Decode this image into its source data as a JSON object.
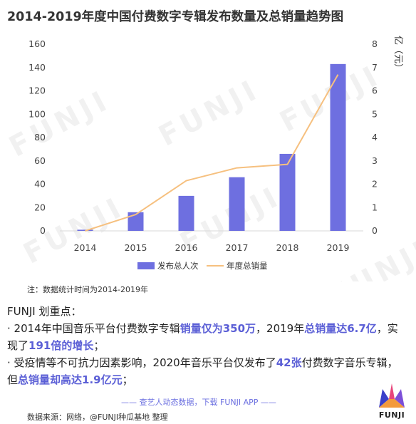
{
  "title": "2014-2019年度中国付费数字专辑发布数量及总销量趋势图",
  "watermark": "FUNJI",
  "chart_data": {
    "type": "bar",
    "categories": [
      "2014",
      "2015",
      "2016",
      "2017",
      "2018",
      "2019"
    ],
    "series": [
      {
        "name": "发布总人次",
        "kind": "bar",
        "axis": "left",
        "color": "#6e6fe0",
        "values": [
          1,
          16,
          30,
          46,
          66,
          143
        ]
      },
      {
        "name": "年度总销量",
        "kind": "line",
        "axis": "right",
        "color": "#f6c07f",
        "values": [
          0.0,
          0.7,
          2.15,
          2.7,
          2.85,
          6.7
        ]
      }
    ],
    "y_left": {
      "ylim": [
        0,
        160
      ],
      "ticks": [
        "0",
        "20",
        "40",
        "60",
        "80",
        "100",
        "120",
        "140",
        "160"
      ]
    },
    "y_right": {
      "ylim": [
        0,
        8
      ],
      "ticks": [
        "0",
        "1",
        "2",
        "3",
        "4",
        "5",
        "6",
        "7",
        "8"
      ],
      "label": "亿（元）"
    },
    "grid": false,
    "legend": "bottom"
  },
  "note": "注：数据统计时间为2014-2019年",
  "highlights": {
    "title": "FUNJI 划重点：",
    "bullet1": {
      "t1": "· 2014年中国音乐平台付费数字专辑",
      "e1": "销量仅为350万",
      "t2": "，2019年",
      "e2": "总销量达6.7亿",
      "t3": "，实现了",
      "e3": "191倍的增长",
      "t4": "；"
    },
    "bullet2": {
      "t1": "· 受疫情等不可抗力因素影响，2020年音乐平台仅发布了",
      "e1": "42张",
      "t2": "付费数字音乐专辑，但",
      "e2": "总销量却高达1.9亿元",
      "t3": "；"
    }
  },
  "promo": "—— 查艺人动态数据，下载 FUNJI APP ——",
  "source": "数据来源：网络，@FUNJI种瓜基地 整理",
  "logo_text": "FUNJI"
}
